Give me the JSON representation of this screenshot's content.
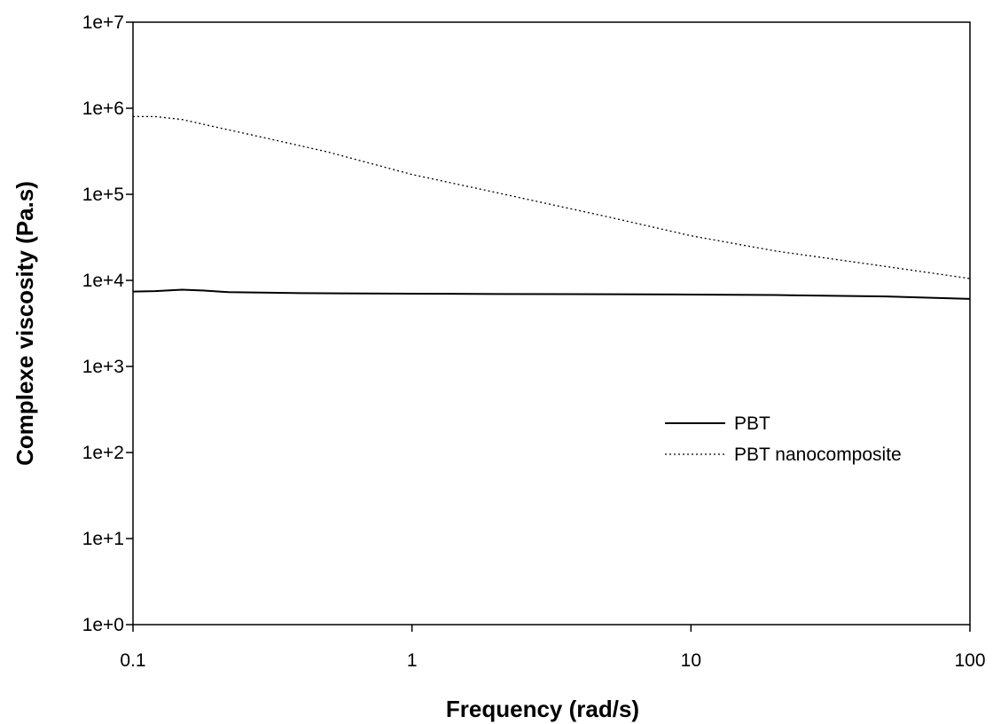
{
  "chart_data": {
    "type": "line",
    "xlabel": "Frequency (rad/s)",
    "ylabel": "Complexe viscosity (Pa.s)",
    "x_scale": "log",
    "y_scale": "log",
    "xlim": [
      0.1,
      100
    ],
    "ylim": [
      1,
      10000000
    ],
    "x_ticks": [
      {
        "value": 0.1,
        "label": "0.1"
      },
      {
        "value": 1,
        "label": "1"
      },
      {
        "value": 10,
        "label": "10"
      },
      {
        "value": 100,
        "label": "100"
      }
    ],
    "y_ticks": [
      {
        "value": 1,
        "label": "1e+0"
      },
      {
        "value": 10,
        "label": "1e+1"
      },
      {
        "value": 100,
        "label": "1e+2"
      },
      {
        "value": 1000,
        "label": "1e+3"
      },
      {
        "value": 10000,
        "label": "1e+4"
      },
      {
        "value": 100000,
        "label": "1e+5"
      },
      {
        "value": 1000000,
        "label": "1e+6"
      },
      {
        "value": 10000000,
        "label": "1e+7"
      }
    ],
    "grid": false,
    "legend_position": "center-right",
    "series": [
      {
        "name": "PBT",
        "style": "solid",
        "color": "#000000",
        "points": [
          {
            "x": 0.1,
            "y": 7400
          },
          {
            "x": 0.12,
            "y": 7500
          },
          {
            "x": 0.15,
            "y": 7800
          },
          {
            "x": 0.18,
            "y": 7600
          },
          {
            "x": 0.22,
            "y": 7300
          },
          {
            "x": 0.4,
            "y": 7100
          },
          {
            "x": 1,
            "y": 7000
          },
          {
            "x": 2,
            "y": 6950
          },
          {
            "x": 5,
            "y": 6900
          },
          {
            "x": 10,
            "y": 6850
          },
          {
            "x": 20,
            "y": 6750
          },
          {
            "x": 50,
            "y": 6500
          },
          {
            "x": 100,
            "y": 6100
          }
        ]
      },
      {
        "name": "PBT nanocomposite",
        "style": "dotted",
        "color": "#000000",
        "points": [
          {
            "x": 0.1,
            "y": 800000
          },
          {
            "x": 0.12,
            "y": 800000
          },
          {
            "x": 0.15,
            "y": 740000
          },
          {
            "x": 0.2,
            "y": 600000
          },
          {
            "x": 0.3,
            "y": 450000
          },
          {
            "x": 0.5,
            "y": 310000
          },
          {
            "x": 1,
            "y": 170000
          },
          {
            "x": 2,
            "y": 105000
          },
          {
            "x": 5,
            "y": 55000
          },
          {
            "x": 10,
            "y": 33000
          },
          {
            "x": 20,
            "y": 22000
          },
          {
            "x": 50,
            "y": 14500
          },
          {
            "x": 100,
            "y": 10500
          }
        ]
      }
    ]
  }
}
